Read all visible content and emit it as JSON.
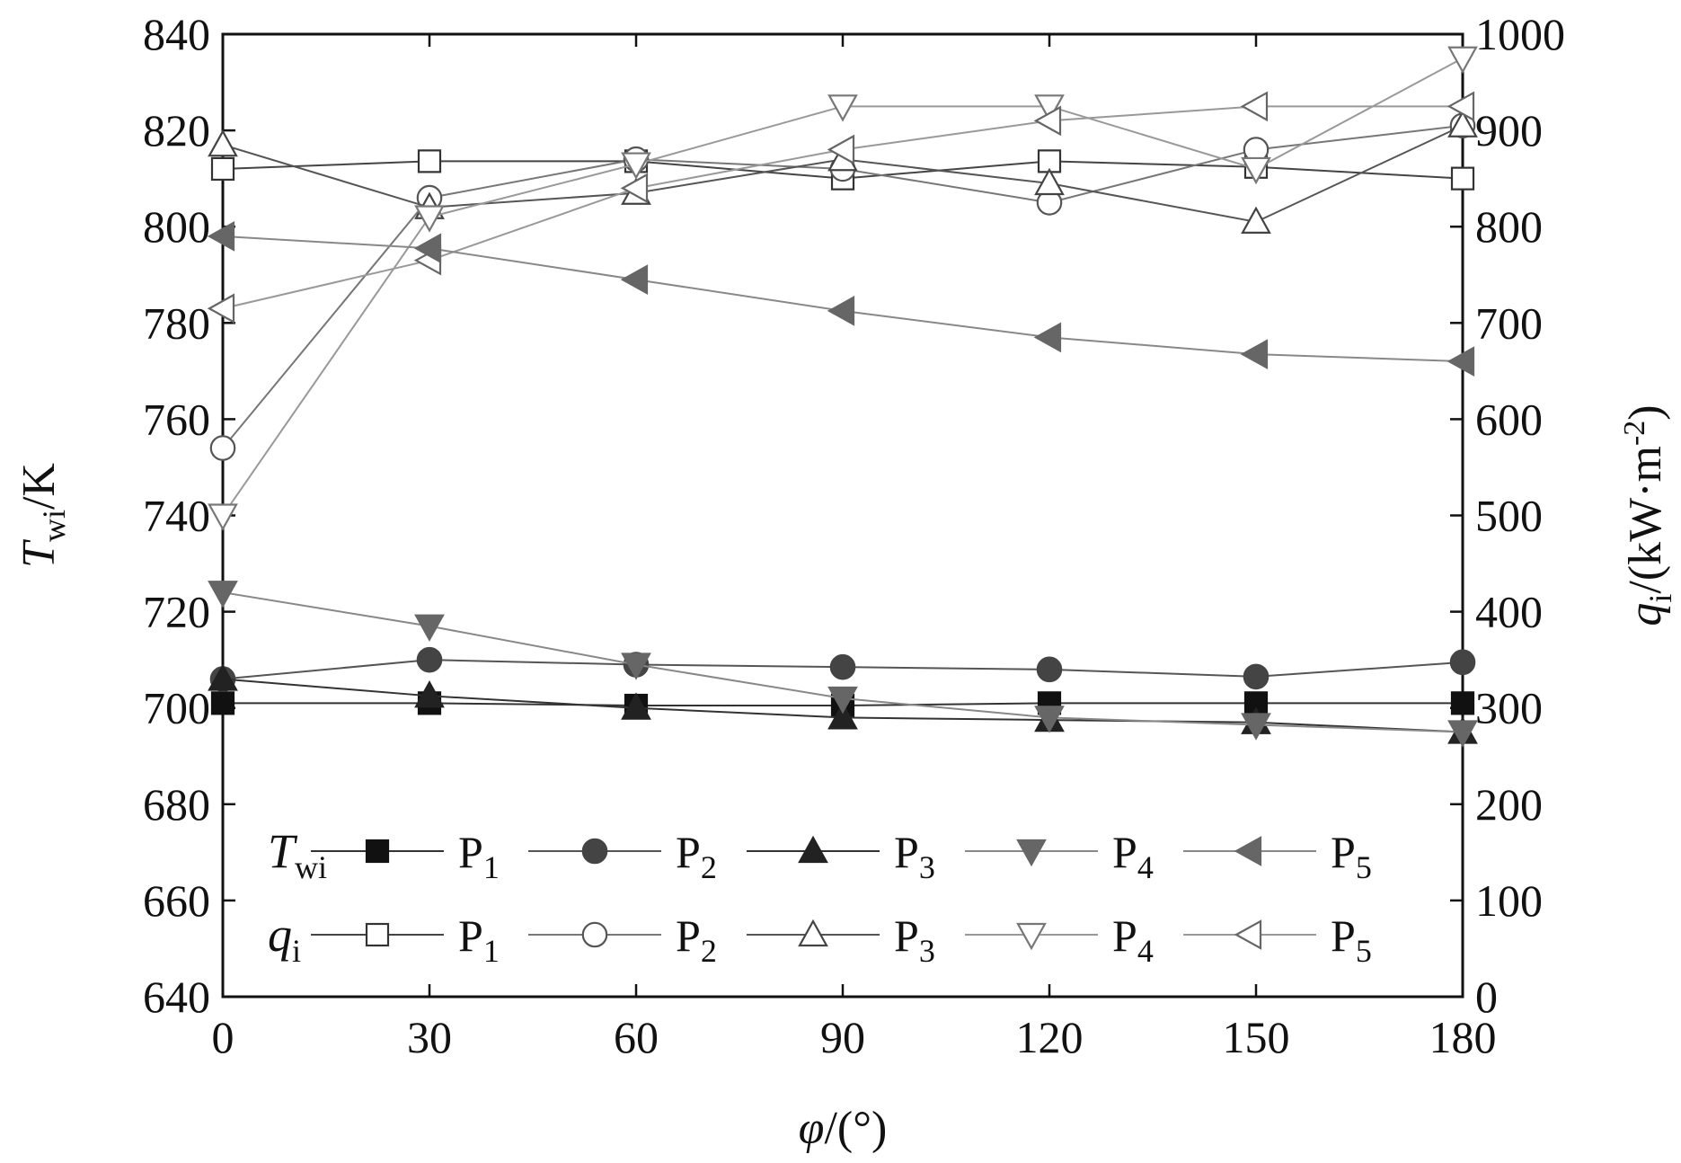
{
  "chart_data": {
    "type": "line",
    "x": [
      0,
      30,
      60,
      90,
      120,
      150,
      180
    ],
    "x_tick_labels": [
      "0",
      "30",
      "60",
      "90",
      "120",
      "150",
      "180"
    ],
    "xlim": [
      0,
      180
    ],
    "xlabel": {
      "main": "φ",
      "rest": "/(°)"
    },
    "y_left": {
      "label": {
        "main": "T",
        "sub": "wi",
        "rest": "/K"
      },
      "ylim": [
        640,
        840
      ],
      "tick_labels": [
        "640",
        "660",
        "680",
        "700",
        "720",
        "740",
        "760",
        "780",
        "800",
        "820",
        "840"
      ]
    },
    "y_right": {
      "label": {
        "main": "q",
        "sub": "i",
        "rest": "/(kW·m",
        "sup": "-2",
        "end": ")"
      },
      "ylim": [
        0,
        1000
      ],
      "tick_labels": [
        "0",
        "100",
        "200",
        "300",
        "400",
        "500",
        "600",
        "700",
        "800",
        "900",
        "1000"
      ]
    },
    "legend": {
      "placement": "bottom",
      "groups": [
        {
          "label": {
            "main": "T",
            "sub": "wi"
          }
        },
        {
          "label": {
            "main": "q",
            "sub": "i"
          }
        }
      ]
    },
    "series": [
      {
        "group": "T_wi",
        "name": {
          "main": "P",
          "sub": "1"
        },
        "axis": "left",
        "marker": "square",
        "filled": true,
        "color": "#111111",
        "line": "#333333",
        "values": [
          701,
          701,
          700.5,
          700.5,
          701,
          701,
          701
        ]
      },
      {
        "group": "T_wi",
        "name": {
          "main": "P",
          "sub": "2"
        },
        "axis": "left",
        "marker": "circle",
        "filled": true,
        "color": "#444444",
        "line": "#555555",
        "values": [
          706,
          710,
          709,
          708.5,
          708,
          706.5,
          709.5
        ]
      },
      {
        "group": "T_wi",
        "name": {
          "main": "P",
          "sub": "3"
        },
        "axis": "left",
        "marker": "triangle-up",
        "filled": true,
        "color": "#222222",
        "line": "#333333",
        "values": [
          706,
          702.5,
          700,
          698,
          697.5,
          697,
          695
        ]
      },
      {
        "group": "T_wi",
        "name": {
          "main": "P",
          "sub": "4"
        },
        "axis": "left",
        "marker": "triangle-down",
        "filled": true,
        "color": "#666666",
        "line": "#888888",
        "values": [
          724,
          717,
          709,
          702,
          698,
          696.5,
          695
        ]
      },
      {
        "group": "T_wi",
        "name": {
          "main": "P",
          "sub": "5"
        },
        "axis": "left",
        "marker": "triangle-left",
        "filled": true,
        "color": "#666666",
        "line": "#888888",
        "values": [
          798,
          795.5,
          789,
          782.5,
          777,
          773.5,
          772
        ]
      },
      {
        "group": "q_i",
        "name": {
          "main": "P",
          "sub": "1"
        },
        "axis": "right",
        "marker": "square",
        "filled": false,
        "color": "#333333",
        "line": "#444444",
        "values": [
          860,
          868,
          868,
          850,
          868,
          862,
          850
        ]
      },
      {
        "group": "q_i",
        "name": {
          "main": "P",
          "sub": "2"
        },
        "axis": "right",
        "marker": "circle",
        "filled": false,
        "color": "#555555",
        "line": "#777777",
        "values": [
          570,
          830,
          870,
          860,
          825,
          880,
          905
        ]
      },
      {
        "group": "q_i",
        "name": {
          "main": "P",
          "sub": "3"
        },
        "axis": "right",
        "marker": "triangle-up",
        "filled": false,
        "color": "#444444",
        "line": "#555555",
        "values": [
          885,
          820,
          835,
          870,
          845,
          805,
          905
        ]
      },
      {
        "group": "q_i",
        "name": {
          "main": "P",
          "sub": "4"
        },
        "axis": "right",
        "marker": "triangle-down",
        "filled": false,
        "color": "#777777",
        "line": "#999999",
        "values": [
          500,
          810,
          865,
          925,
          925,
          860,
          975
        ]
      },
      {
        "group": "q_i",
        "name": {
          "main": "P",
          "sub": "5"
        },
        "axis": "right",
        "marker": "triangle-left",
        "filled": false,
        "color": "#666666",
        "line": "#999999",
        "values": [
          715,
          765,
          840,
          880,
          910,
          925,
          925
        ]
      }
    ]
  }
}
